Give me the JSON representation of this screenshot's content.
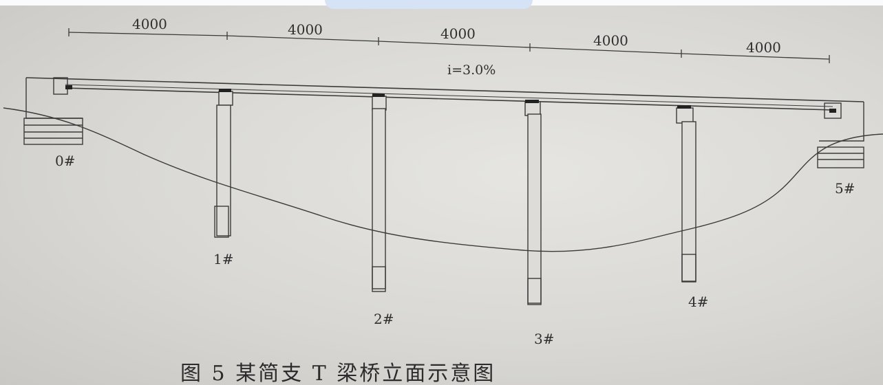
{
  "figure": {
    "caption": "图 5   某简支 T 梁桥立面示意图",
    "slope_label": "i=3.0%",
    "span_dims": [
      "4000",
      "4000",
      "4000",
      "4000",
      "4000"
    ],
    "piers": [
      {
        "label": "0#"
      },
      {
        "label": "1#"
      },
      {
        "label": "2#"
      },
      {
        "label": "3#"
      },
      {
        "label": "4#"
      },
      {
        "label": "5#"
      }
    ]
  },
  "colors": {
    "line": "#3a3a3a",
    "paper": "#d9d8d4",
    "bearing": "#222222"
  }
}
